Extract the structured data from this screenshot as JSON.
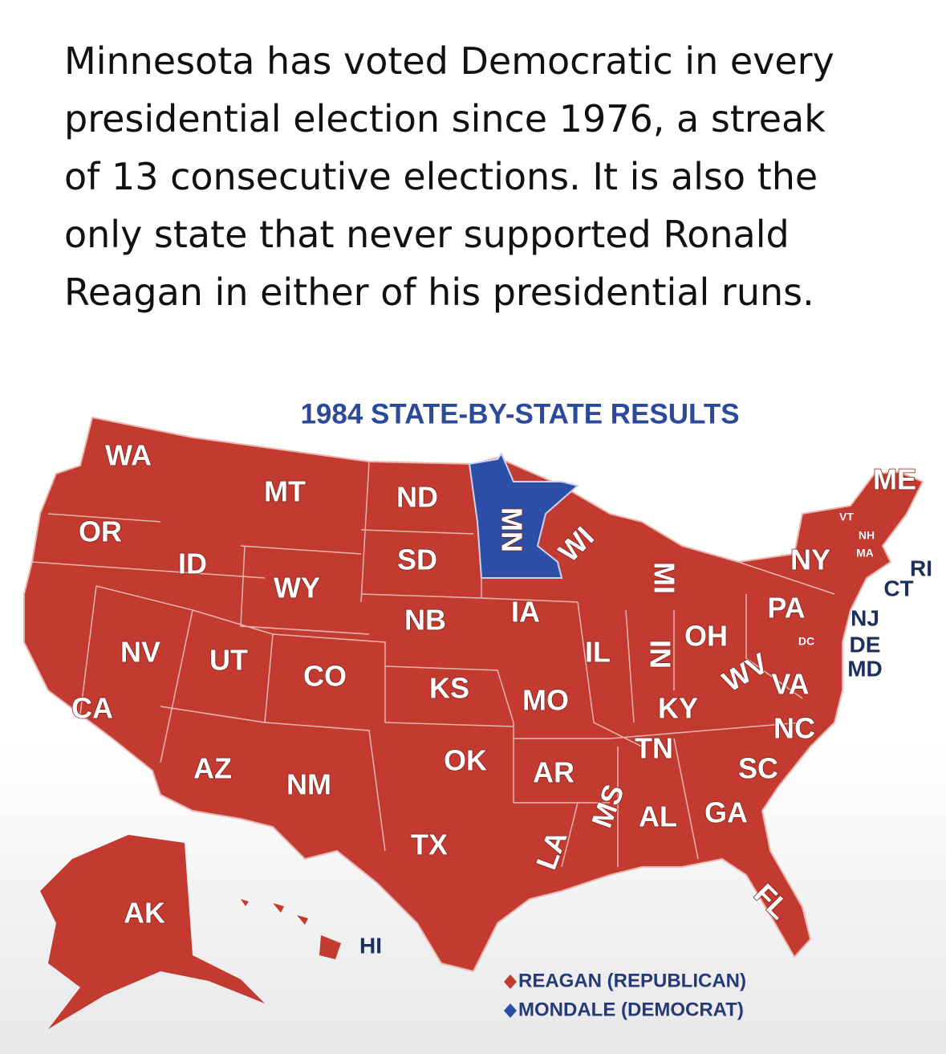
{
  "text": {
    "lines": [
      "Minnesota has voted Democratic in every",
      "presidential election since 1976, a streak",
      "of 13 consecutive elections. It is also the",
      "only state that never supported Ronald",
      "Reagan in either of his presidential runs."
    ]
  },
  "map": {
    "title": "1984 STATE-BY-STATE RESULTS",
    "states": [
      "WA",
      "OR",
      "ID",
      "MT",
      "ND",
      "SD",
      "WY",
      "NV",
      "UT",
      "CO",
      "NB",
      "IA",
      "KS",
      "CA",
      "AZ",
      "NM",
      "OK",
      "TX",
      "MO",
      "AR",
      "IL",
      "IN",
      "OH",
      "MI",
      "WI",
      "MN",
      "KY",
      "TN",
      "MS",
      "AL",
      "GA",
      "LA",
      "FL",
      "SC",
      "NC",
      "VA",
      "WV",
      "PA",
      "NY",
      "ME",
      "VT",
      "NH",
      "MA",
      "RI",
      "CT",
      "NJ",
      "DE",
      "MD",
      "DC",
      "AK",
      "HI"
    ],
    "legend": [
      {
        "label": "REAGAN (REPUBLICAN)",
        "color": "#c33b30"
      },
      {
        "label": "MONDALE (DEMOCRAT)",
        "color": "#2d4ea6"
      }
    ]
  }
}
